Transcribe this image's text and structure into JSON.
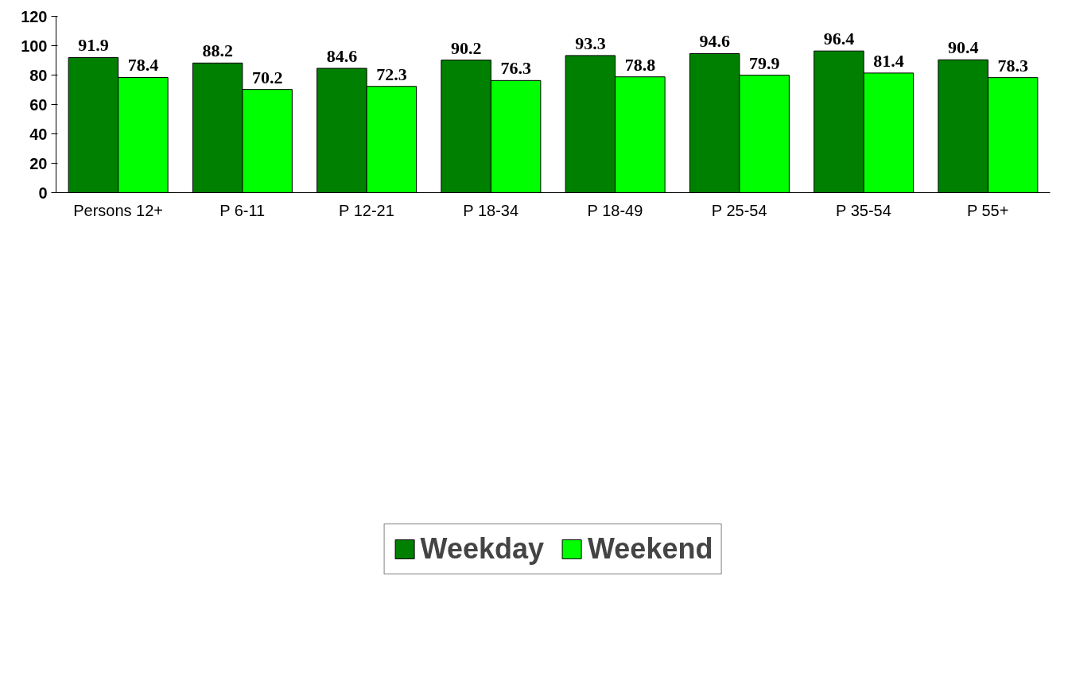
{
  "chart_data": {
    "type": "bar",
    "categories": [
      "Persons 12+",
      "P 6-11",
      "P 12-21",
      "P 18-34",
      "P 18-49",
      "P 25-54",
      "P 35-54",
      "P 55+"
    ],
    "series": [
      {
        "name": "Weekday",
        "color": "#008000",
        "values": [
          91.9,
          88.2,
          84.6,
          90.2,
          93.3,
          94.6,
          96.4,
          90.4
        ]
      },
      {
        "name": "Weekend",
        "color": "#00ff00",
        "values": [
          78.4,
          70.2,
          72.3,
          76.3,
          78.8,
          79.9,
          81.4,
          78.3
        ]
      }
    ],
    "ylim": [
      0,
      120
    ],
    "yticks": [
      0,
      20,
      40,
      60,
      80,
      100,
      120
    ],
    "grid": false,
    "legend": "bottom",
    "data_labels": true
  }
}
